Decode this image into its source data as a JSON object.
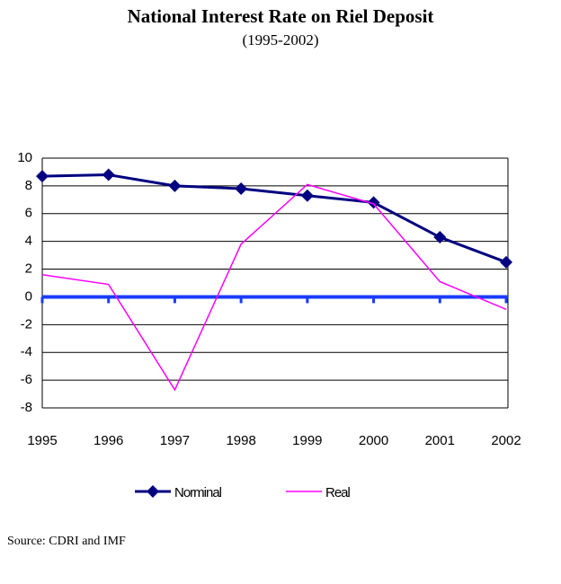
{
  "chart_data": {
    "type": "line",
    "title": "National Interest Rate on Riel Deposit",
    "subtitle": "(1995-2002)",
    "source": "Source: CDRI and IMF",
    "categories": [
      "1995",
      "1996",
      "1997",
      "1998",
      "1999",
      "2000",
      "2001",
      "2002"
    ],
    "series": [
      {
        "name": "Norminal",
        "color": "#000080",
        "values": [
          8.7,
          8.8,
          8.0,
          7.8,
          7.3,
          6.8,
          4.3,
          2.5
        ]
      },
      {
        "name": "Real",
        "color": "#ff00ff",
        "values": [
          1.6,
          0.9,
          -6.7,
          3.8,
          8.1,
          6.7,
          1.1,
          -0.9
        ]
      }
    ],
    "ylim": [
      -8,
      10
    ],
    "yticks": [
      -8,
      -6,
      -4,
      -2,
      0,
      2,
      4,
      6,
      8,
      10
    ],
    "grid": true,
    "axis_color": "#1a3cff",
    "legend": "bottom"
  }
}
